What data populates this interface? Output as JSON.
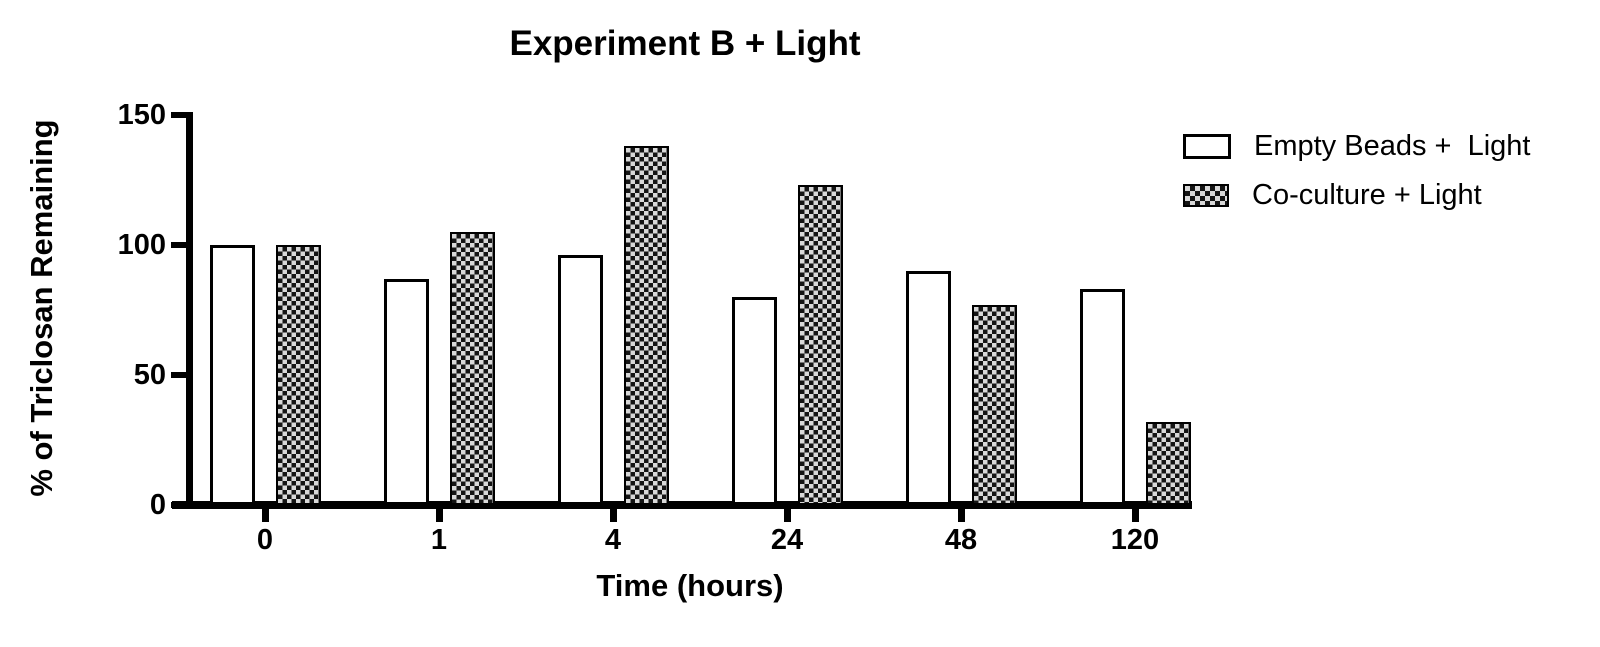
{
  "chart_data": {
    "type": "bar",
    "title": "Experiment B + Light",
    "xlabel": "Time (hours)",
    "ylabel": "% of Triclosan Remaining",
    "categories": [
      "0",
      "1",
      "4",
      "24",
      "48",
      "120"
    ],
    "series": [
      {
        "name": "Empty Beads +  Light",
        "pattern": "solid-white",
        "values": [
          100,
          87,
          96,
          80,
          90,
          83
        ]
      },
      {
        "name": "Co-culture + Light",
        "pattern": "checkerboard",
        "values": [
          100,
          105,
          138,
          123,
          77,
          32
        ]
      }
    ],
    "ylim": [
      0,
      150
    ],
    "yticks": [
      0,
      50,
      100,
      150
    ],
    "grid": false,
    "legend_position": "top-right",
    "colors": {
      "axis": "#000000",
      "bar_white_fill": "#ffffff",
      "checker_dark": "#141414",
      "checker_light": "#d8d8d8",
      "text": "#000000",
      "background": "#ffffff"
    }
  }
}
